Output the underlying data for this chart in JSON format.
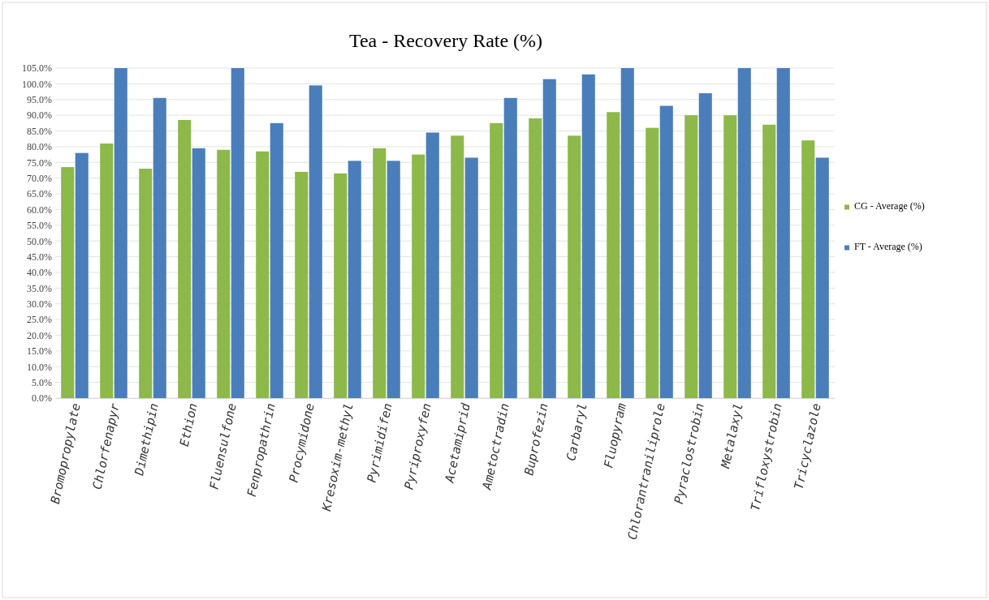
{
  "chart_data": {
    "type": "bar",
    "title": "Tea - Recovery Rate (%)",
    "categories": [
      "Bromopropylate",
      "Chlorfenapyr",
      "Dimethipin",
      "Ethion",
      "Fluensulfone",
      "Fenpropathrin",
      "Procymidone",
      "Kresoxim-methyl",
      "Pyrimidifen",
      "Pyriproxyfen",
      "Acetamiprid",
      "Ametoctradin",
      "Buprofezin",
      "Carbaryl",
      "Fluopyram",
      "Chlorantraniliprole",
      "Pyraclostrobin",
      "Metalaxyl",
      "Trifloxystrobin",
      "Tricyclazole"
    ],
    "series": [
      {
        "name": "CG - Average (%)",
        "color": "#8db84a",
        "values": [
          73.5,
          81,
          73,
          88.5,
          79,
          78.5,
          72,
          71.5,
          79.5,
          77.5,
          83.5,
          87.5,
          89,
          83.5,
          91,
          86,
          90,
          90,
          87,
          82
        ]
      },
      {
        "name": "FT - Average (%)",
        "color": "#4a7ebb",
        "values": [
          78,
          105,
          95.5,
          79.5,
          105,
          87.5,
          99.5,
          75.5,
          75.5,
          84.5,
          76.5,
          95.5,
          101.5,
          103,
          105,
          93,
          97,
          105,
          105,
          76.5
        ]
      }
    ],
    "ylim": [
      0,
      105
    ],
    "yticks": [
      {
        "value": 0,
        "label": "0.0%"
      },
      {
        "value": 5,
        "label": "5.0%"
      },
      {
        "value": 10,
        "label": "10.0%"
      },
      {
        "value": 15,
        "label": "15.0%"
      },
      {
        "value": 20,
        "label": "20.0%"
      },
      {
        "value": 25,
        "label": "25.0%"
      },
      {
        "value": 30,
        "label": "30.0%"
      },
      {
        "value": 35,
        "label": "35.0%"
      },
      {
        "value": 40,
        "label": "40.0%"
      },
      {
        "value": 45,
        "label": "45.0%"
      },
      {
        "value": 50,
        "label": "50.0%"
      },
      {
        "value": 55,
        "label": "55.0%"
      },
      {
        "value": 60,
        "label": "60.0%"
      },
      {
        "value": 65,
        "label": "65.0%"
      },
      {
        "value": 70,
        "label": "70.0%"
      },
      {
        "value": 75,
        "label": "75.0%"
      },
      {
        "value": 80,
        "label": "80.0%"
      },
      {
        "value": 85,
        "label": "85.0%"
      },
      {
        "value": 90,
        "label": "90.0%"
      },
      {
        "value": 95,
        "label": "95.0%"
      },
      {
        "value": 100,
        "label": "100.0%"
      },
      {
        "value": 105,
        "label": "105.0%"
      }
    ],
    "grid": "y",
    "legend": "right"
  }
}
